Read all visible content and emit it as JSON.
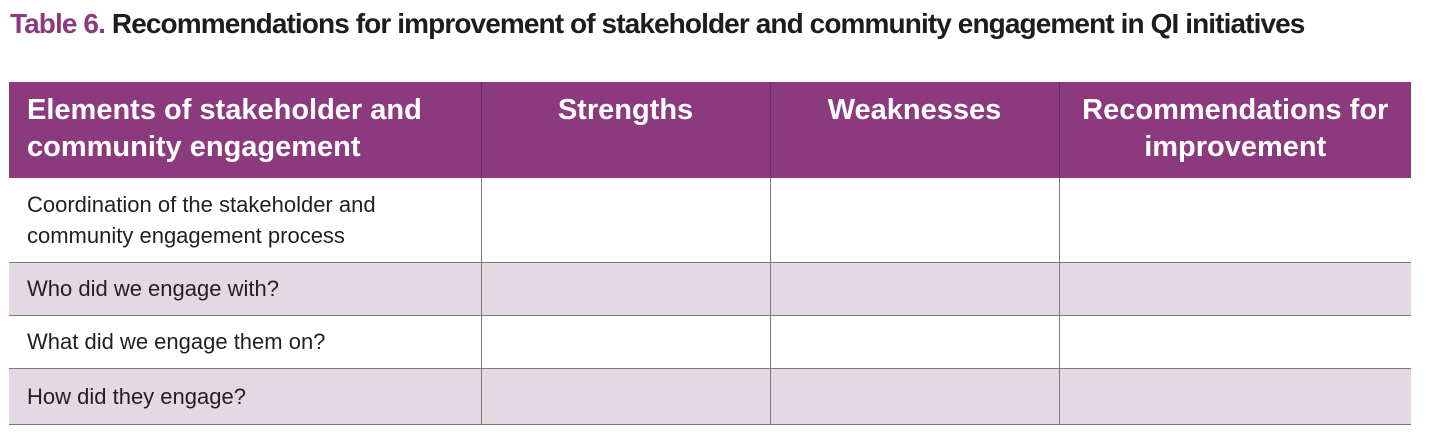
{
  "caption": {
    "label": "Table 6.",
    "title": "Recommendations for improvement of stakeholder and community engagement in QI initiatives"
  },
  "table": {
    "headers": [
      "Elements of stakeholder and community engagement",
      "Strengths",
      "Weaknesses",
      "Recommendations for improvement"
    ],
    "rows": [
      {
        "element": "Coordination of the stakeholder and community engagement process",
        "strengths": "",
        "weaknesses": "",
        "recommendations": ""
      },
      {
        "element": "Who did we engage with?",
        "strengths": "",
        "weaknesses": "",
        "recommendations": ""
      },
      {
        "element": "What did we engage them on?",
        "strengths": "",
        "weaknesses": "",
        "recommendations": ""
      },
      {
        "element": "How did they engage?",
        "strengths": "",
        "weaknesses": "",
        "recommendations": ""
      }
    ]
  },
  "colors": {
    "accent": "#8b3a7e",
    "row_shade": "#e6d8e2",
    "text": "#231f20"
  }
}
